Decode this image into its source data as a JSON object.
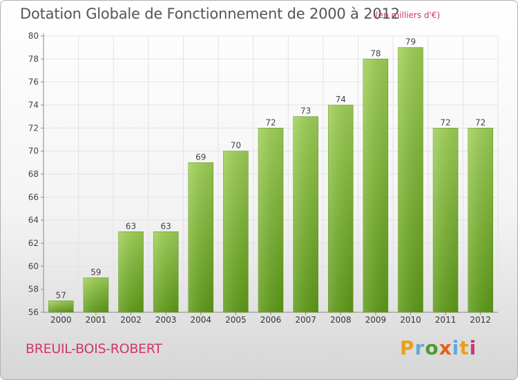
{
  "header": {
    "title": "Dotation Globale de Fonctionnement de 2000 à 2012",
    "unit": "(en milliers d'€)"
  },
  "footer": {
    "commune": "BREUIL-BOIS-ROBERT",
    "logo_letters": [
      "P",
      "r",
      "o",
      "x",
      "i",
      "t",
      "i"
    ]
  },
  "colors": {
    "bar_top": "#9fd156",
    "bar_bottom": "#5e9b17",
    "commune": "#d1356e",
    "grid": "#e2e2e2"
  },
  "chart_data": {
    "type": "bar",
    "title": "Dotation Globale de Fonctionnement de 2000 à 2012",
    "ylabel": "",
    "xlabel": "",
    "categories": [
      "2000",
      "2001",
      "2002",
      "2003",
      "2004",
      "2005",
      "2006",
      "2007",
      "2008",
      "2009",
      "2010",
      "2011",
      "2012"
    ],
    "values": [
      57,
      59,
      63,
      63,
      69,
      70,
      72,
      73,
      74,
      78,
      79,
      72,
      72
    ],
    "ylim": [
      56,
      80
    ],
    "yticks": [
      56,
      58,
      60,
      62,
      64,
      66,
      68,
      70,
      72,
      74,
      76,
      78,
      80
    ],
    "grid": true,
    "data_labels": true
  }
}
